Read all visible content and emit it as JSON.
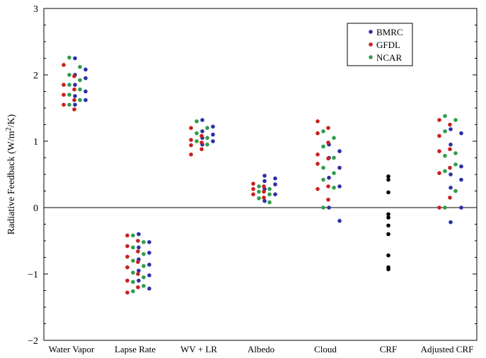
{
  "chart_data": {
    "type": "scatter",
    "title": "",
    "xlabel": "",
    "ylabel": "Radiative Feedback (W/m",
    "ylabel_sup": "2",
    "ylabel_tail": "/K)",
    "ylim": [
      -2,
      3
    ],
    "yticks": [
      -2,
      -1,
      0,
      1,
      2,
      3
    ],
    "zero_line": true,
    "grid": false,
    "legend": "top-right",
    "categories": [
      "Water Vapor",
      "Lapse Rate",
      "WV + LR",
      "Albedo",
      "Cloud",
      "CRF",
      "Adjusted CRF"
    ],
    "series": [
      {
        "name": "BMRC",
        "color": "#2b2fa6",
        "values": [
          [
            2.25,
            2.08,
            2.0,
            1.95,
            1.85,
            1.75,
            1.68,
            1.62,
            1.55
          ],
          [
            -0.4,
            -0.52,
            -0.6,
            -0.68,
            -0.78,
            -0.86,
            -0.95,
            -1.02,
            -1.1,
            -1.22
          ],
          [
            1.32,
            1.22,
            1.15,
            1.1,
            1.05,
            1.0,
            0.95
          ],
          [
            0.48,
            0.44,
            0.4,
            0.35,
            0.28,
            0.2,
            0.1
          ],
          [
            0.95,
            0.85,
            0.75,
            0.6,
            0.45,
            0.32,
            0.0,
            -0.2
          ],
          [],
          [
            1.18,
            1.12,
            0.95,
            0.62,
            0.5,
            0.42,
            0.3,
            0.0,
            -0.22
          ]
        ]
      },
      {
        "name": "GFDL",
        "color": "#c82020",
        "values": [
          [
            2.15,
            1.98,
            1.85,
            1.78,
            1.7,
            1.62,
            1.55,
            1.48
          ],
          [
            -0.42,
            -0.5,
            -0.58,
            -0.66,
            -0.74,
            -0.82,
            -0.9,
            -1.0,
            -1.1,
            -1.2,
            -1.28
          ],
          [
            1.2,
            1.08,
            1.02,
            0.98,
            0.94,
            0.88,
            0.8
          ],
          [
            0.36,
            0.32,
            0.28,
            0.24,
            0.2,
            0.15
          ],
          [
            1.3,
            1.2,
            1.12,
            0.98,
            0.8,
            0.74,
            0.66,
            0.32,
            0.28,
            0.12
          ],
          [],
          [
            1.32,
            1.25,
            1.08,
            0.88,
            0.85,
            0.6,
            0.52,
            0.15,
            0.0
          ]
        ]
      },
      {
        "name": "NCAR",
        "color": "#2e9e4a",
        "values": [
          [
            2.26,
            2.12,
            2.0,
            1.92,
            1.85,
            1.78,
            1.7,
            1.62,
            1.55
          ],
          [
            -0.42,
            -0.52,
            -0.6,
            -0.7,
            -0.8,
            -0.88,
            -0.98,
            -1.05,
            -1.12,
            -1.18,
            -1.26
          ],
          [
            1.3,
            1.2,
            1.12,
            1.05,
            1.0,
            0.95
          ],
          [
            0.32,
            0.28,
            0.24,
            0.2,
            0.14,
            0.08
          ],
          [
            1.15,
            1.05,
            0.92,
            0.75,
            0.6,
            0.52,
            0.42,
            0.3,
            0.0
          ],
          [],
          [
            1.38,
            1.32,
            1.15,
            0.82,
            0.78,
            0.65,
            0.55,
            0.25,
            0.0
          ]
        ]
      },
      {
        "name": "",
        "color": "#000000",
        "values": [
          [],
          [],
          [],
          [],
          [],
          [
            0.47,
            0.42,
            0.23,
            -0.1,
            -0.15,
            -0.27,
            -0.4,
            -0.72,
            -0.9,
            -0.93
          ],
          []
        ]
      }
    ],
    "legend_entries": [
      "BMRC",
      "GFDL",
      "NCAR"
    ]
  }
}
